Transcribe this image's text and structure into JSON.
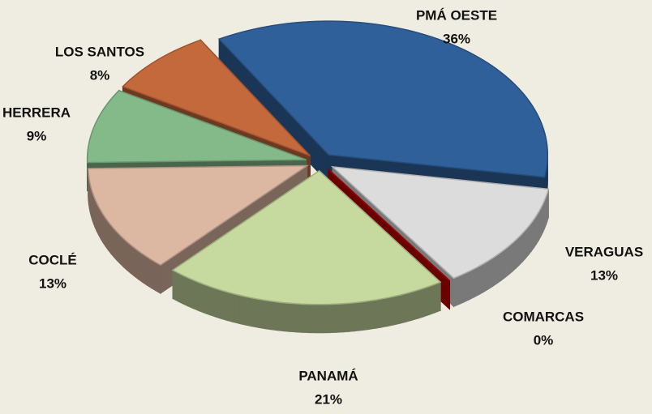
{
  "chart_data": {
    "type": "pie3d",
    "categories": [
      "PMÁ OESTE",
      "VERAGUAS",
      "COMARCAS",
      "PANAMÁ",
      "COCLÉ",
      "HERRERA",
      "LOS SANTOS"
    ],
    "values": [
      36,
      13,
      0,
      21,
      13,
      9,
      8
    ],
    "value_labels": [
      "36%",
      "13%",
      "0%",
      "21%",
      "13%",
      "9%",
      "8%"
    ],
    "colors": [
      "#30609a",
      "#dcdcdc",
      "#c00000",
      "#c6d99e",
      "#dcb7a2",
      "#84ba8a",
      "#c4693c"
    ]
  }
}
